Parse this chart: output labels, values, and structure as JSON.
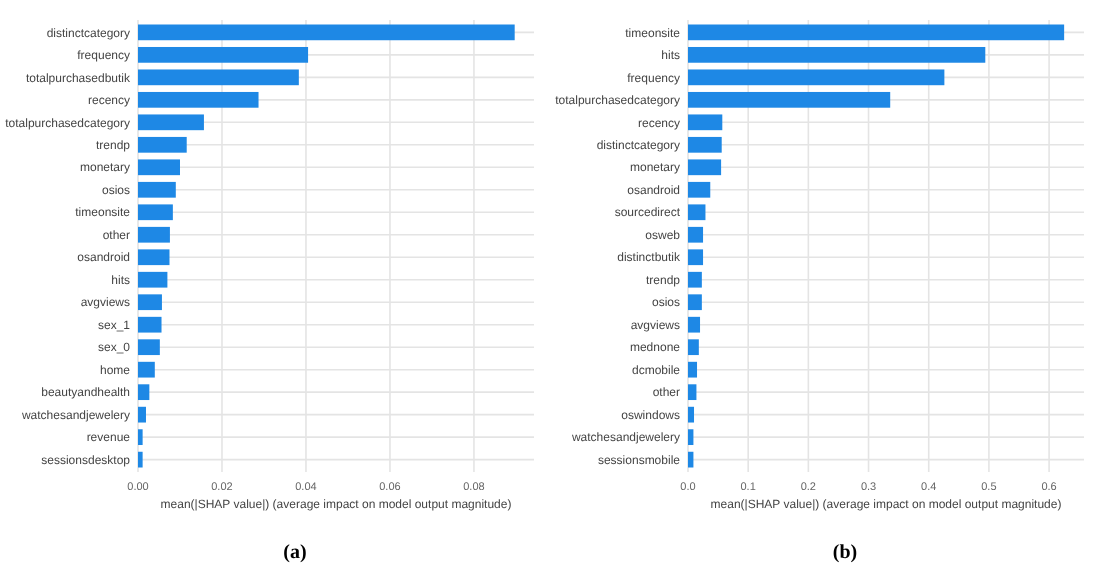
{
  "chart_data": [
    {
      "type": "bar",
      "orientation": "horizontal",
      "xlabel": "mean(|SHAP value|) (average impact on model output magnitude)",
      "annotations": [
        "(a)"
      ],
      "grid": true,
      "color": "#1e88e5",
      "categories": [
        "distinctcategory",
        "frequency",
        "totalpurchasedbutik",
        "recency",
        "totalpurchasedcategory",
        "trendp",
        "monetary",
        "osios",
        "timeonsite",
        "other",
        "osandroid",
        "hits",
        "avgviews",
        "sex_1",
        "sex_0",
        "home",
        "beautyandhealth",
        "watchesandjewelery",
        "revenue",
        "sessionsdesktop"
      ],
      "values": [
        0.0897,
        0.0405,
        0.0383,
        0.0287,
        0.0157,
        0.0116,
        0.01,
        0.009,
        0.0083,
        0.0076,
        0.0075,
        0.007,
        0.0057,
        0.0056,
        0.0052,
        0.004,
        0.0027,
        0.0019,
        0.0011,
        0.0011
      ],
      "xlim": [
        0,
        0.0943
      ],
      "xticks": [
        {
          "value": 0,
          "label": "0.00"
        },
        {
          "value": 0.02,
          "label": "0.02"
        },
        {
          "value": 0.04,
          "label": "0.04"
        },
        {
          "value": 0.06,
          "label": "0.06"
        },
        {
          "value": 0.08,
          "label": "0.08"
        }
      ]
    },
    {
      "type": "bar",
      "orientation": "horizontal",
      "xlabel": "mean(|SHAP value|) (average impact on model output magnitude)",
      "annotations": [
        "(b)"
      ],
      "grid": true,
      "color": "#1e88e5",
      "categories": [
        "timeonsite",
        "hits",
        "frequency",
        "totalpurchasedcategory",
        "recency",
        "distinctcategory",
        "monetary",
        "osandroid",
        "sourcedirect",
        "osweb",
        "distinctbutik",
        "trendp",
        "osios",
        "avgviews",
        "mednone",
        "dcmobile",
        "other",
        "oswindows",
        "watchesandjewelery",
        "sessionsmobile"
      ],
      "values": [
        0.625,
        0.494,
        0.426,
        0.336,
        0.057,
        0.056,
        0.055,
        0.037,
        0.029,
        0.025,
        0.025,
        0.023,
        0.023,
        0.02,
        0.018,
        0.015,
        0.014,
        0.01,
        0.009,
        0.009
      ],
      "xlim": [
        0,
        0.658
      ],
      "xticks": [
        {
          "value": 0,
          "label": "0.0"
        },
        {
          "value": 0.1,
          "label": "0.1"
        },
        {
          "value": 0.2,
          "label": "0.2"
        },
        {
          "value": 0.3,
          "label": "0.3"
        },
        {
          "value": 0.4,
          "label": "0.4"
        },
        {
          "value": 0.5,
          "label": "0.5"
        },
        {
          "value": 0.6,
          "label": "0.6"
        }
      ]
    }
  ]
}
